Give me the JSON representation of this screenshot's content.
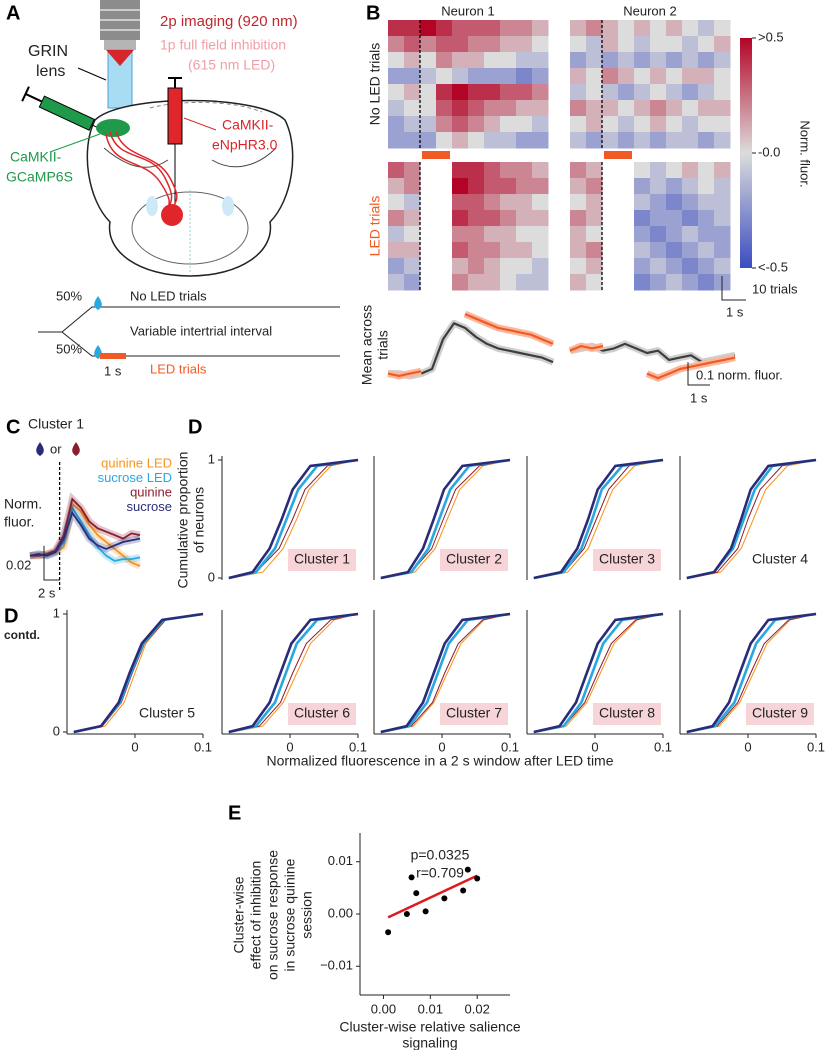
{
  "panel_a": {
    "label": "A",
    "texts": {
      "imaging": "2p imaging (920 nm)",
      "inhibition_1": "1p full field inhibition",
      "inhibition_2": "(615 nm LED)",
      "grin_1": "GRIN",
      "grin_2": "lens",
      "opsin_1": "CaMKII-",
      "opsin_2": "eNpHR3.0",
      "indicator_1": "CaMKII-",
      "indicator_2": "GCaMP6S"
    },
    "protocol": {
      "no_led_percent": "50%",
      "no_led_label": "No LED trials",
      "iti": "Variable intertrial interval",
      "led_percent": "50%",
      "duration": "1 s",
      "led_label": "LED trials"
    }
  },
  "panel_b": {
    "label": "B",
    "type": "heatmap",
    "row_labels": [
      "No LED trials",
      "LED trials"
    ],
    "led_color": "#f15a24",
    "colorscale": {
      "label": "Norm. fluor.",
      "colors": [
        "#3a4cc0",
        "#dcdcdc",
        "#b40426"
      ],
      "ticks": [
        {
          "value": 0.5,
          "label": ">0.5"
        },
        {
          "value": 0,
          "label": "-0.0"
        },
        {
          "value": -0.5,
          "label": "<-0.5"
        }
      ]
    },
    "scalebar": {
      "trials": "10 trials",
      "time": "1 s"
    },
    "trace_label": [
      "Mean across",
      "trials"
    ],
    "trace_colors": [
      "#3d3d3d",
      "#f15a24"
    ],
    "trace_ylim": [
      -0.05,
      0.3
    ],
    "trace_scalebar": {
      "value": 0.1,
      "label": "0.1 norm. fluor."
    },
    "trace_time": "1 s",
    "neurons": [
      {
        "title": "Neuron 1",
        "no_led": [
          [
            0.4,
            0.4,
            0.5,
            0.4,
            0.3,
            0.3,
            0.3,
            0.2,
            0.2,
            0.1
          ],
          [
            0.2,
            0.3,
            0.2,
            0.3,
            0.3,
            0.2,
            0.2,
            0.1,
            0.1,
            0.0
          ],
          [
            0.0,
            0.1,
            0.0,
            0.2,
            0.1,
            0.1,
            0.0,
            0.0,
            -0.1,
            -0.1
          ],
          [
            -0.2,
            -0.2,
            -0.1,
            0.0,
            -0.1,
            -0.2,
            -0.2,
            -0.2,
            -0.3,
            -0.2
          ],
          [
            0.0,
            0.1,
            0.0,
            0.4,
            0.5,
            0.4,
            0.4,
            0.3,
            0.3,
            0.2
          ],
          [
            -0.1,
            0.0,
            0.0,
            0.3,
            0.4,
            0.3,
            0.2,
            0.2,
            0.1,
            0.1
          ],
          [
            -0.2,
            -0.1,
            -0.1,
            0.2,
            0.3,
            0.2,
            0.1,
            0.0,
            0.0,
            -0.1
          ],
          [
            -0.2,
            -0.2,
            -0.2,
            0.0,
            0.1,
            0.0,
            -0.1,
            -0.1,
            -0.2,
            -0.2
          ]
        ],
        "led": [
          [
            0.3,
            0.2,
            null,
            null,
            0.4,
            0.4,
            0.3,
            0.2,
            0.2,
            0.1
          ],
          [
            0.1,
            0.2,
            null,
            null,
            0.5,
            0.4,
            0.3,
            0.3,
            0.2,
            0.2
          ],
          [
            0.0,
            -0.1,
            null,
            null,
            0.3,
            0.3,
            0.2,
            0.1,
            0.1,
            0.0
          ],
          [
            0.2,
            0.1,
            null,
            null,
            0.4,
            0.3,
            0.3,
            0.2,
            0.1,
            0.1
          ],
          [
            -0.1,
            0.0,
            null,
            null,
            0.2,
            0.2,
            0.1,
            0.1,
            0.0,
            0.0
          ],
          [
            0.1,
            0.1,
            null,
            null,
            0.3,
            0.2,
            0.2,
            0.1,
            0.1,
            0.0
          ],
          [
            -0.2,
            -0.1,
            null,
            null,
            0.1,
            0.2,
            0.1,
            0.0,
            0.0,
            -0.1
          ],
          [
            -0.1,
            -0.2,
            null,
            null,
            0.2,
            0.1,
            0.1,
            0.0,
            -0.1,
            -0.1
          ]
        ],
        "trace_no_led": [
          0,
          0,
          -0.01,
          0,
          0.02,
          0.15,
          0.22,
          0.2,
          0.16,
          0.13,
          0.11,
          0.1,
          0.09,
          0.08,
          0.07,
          0.05
        ],
        "trace_led": [
          0.0,
          -0.01,
          0,
          0.01,
          null,
          null,
          null,
          0.26,
          0.24,
          0.22,
          0.2,
          0.19,
          0.18,
          0.17,
          0.15,
          0.13
        ]
      },
      {
        "title": "Neuron 2",
        "no_led": [
          [
            0.1,
            0.2,
            0.1,
            0.0,
            0.1,
            0.0,
            0.1,
            0.0,
            -0.1,
            0.0
          ],
          [
            0.0,
            -0.1,
            0.1,
            0.0,
            -0.1,
            0.0,
            0.0,
            -0.1,
            0.0,
            0.1
          ],
          [
            -0.2,
            -0.1,
            -0.2,
            -0.1,
            -0.2,
            -0.1,
            -0.2,
            -0.1,
            -0.2,
            -0.1
          ],
          [
            0.1,
            0.0,
            0.2,
            0.1,
            0.0,
            0.1,
            0.0,
            0.1,
            0.1,
            0.0
          ],
          [
            -0.1,
            0.0,
            -0.1,
            -0.2,
            -0.1,
            0.0,
            -0.1,
            -0.2,
            -0.1,
            0.0
          ],
          [
            0.2,
            0.1,
            0.1,
            0.0,
            0.1,
            0.2,
            0.1,
            0.0,
            0.1,
            0.1
          ],
          [
            0.0,
            0.1,
            0.0,
            -0.1,
            0.0,
            0.1,
            0.0,
            -0.1,
            0.0,
            0.0
          ],
          [
            -0.1,
            -0.2,
            -0.1,
            -0.2,
            -0.1,
            -0.2,
            -0.1,
            -0.1,
            -0.2,
            -0.1
          ]
        ],
        "led": [
          [
            0.2,
            0.1,
            null,
            null,
            0.0,
            -0.1,
            0.0,
            0.1,
            0.0,
            0.1
          ],
          [
            0.1,
            0.2,
            null,
            null,
            -0.2,
            -0.1,
            -0.2,
            -0.1,
            0.0,
            -0.1
          ],
          [
            0.0,
            0.1,
            null,
            null,
            -0.1,
            -0.2,
            -0.3,
            -0.2,
            -0.1,
            -0.1
          ],
          [
            0.2,
            0.1,
            null,
            null,
            -0.3,
            -0.2,
            -0.2,
            -0.3,
            -0.2,
            -0.1
          ],
          [
            0.1,
            0.0,
            null,
            null,
            -0.2,
            -0.3,
            -0.2,
            -0.1,
            -0.2,
            -0.2
          ],
          [
            0.1,
            0.2,
            null,
            null,
            -0.1,
            -0.2,
            -0.3,
            -0.2,
            -0.1,
            -0.2
          ],
          [
            0.0,
            0.1,
            null,
            null,
            -0.2,
            -0.1,
            -0.2,
            -0.3,
            -0.2,
            -0.1
          ],
          [
            0.1,
            0.0,
            null,
            null,
            -0.3,
            -0.2,
            -0.1,
            -0.2,
            -0.3,
            -0.2
          ]
        ],
        "trace_no_led": [
          0.1,
          0.11,
          0.12,
          0.1,
          0.11,
          0.13,
          0.11,
          0.09,
          0.1,
          0.06,
          0.07,
          0.08,
          0.05,
          0.06,
          0.07,
          0.08
        ],
        "trace_led": [
          0.1,
          0.12,
          0.11,
          0.12,
          null,
          null,
          null,
          0.0,
          -0.02,
          0.0,
          0.02,
          0.03,
          0.04,
          0.05,
          0.06,
          0.07
        ]
      }
    ]
  },
  "panel_c": {
    "label": "C",
    "type": "line",
    "title": "Cluster 1",
    "or": "or",
    "ylabel": [
      "Norm.",
      "fluor."
    ],
    "ylim": [
      -0.02,
      0.05
    ],
    "scalebar_y": 0.02,
    "scalebar_x": "2 s",
    "series": [
      {
        "name": "quinine LED",
        "color": "#f7941d",
        "values": [
          0,
          0,
          0.001,
          0.002,
          0.005,
          0.03,
          0.026,
          0.018,
          0.012,
          0.008,
          0.004,
          0.0,
          -0.004,
          -0.006
        ]
      },
      {
        "name": "sucrose LED",
        "color": "#29a8e0",
        "values": [
          0,
          0.001,
          0,
          0.002,
          0.008,
          0.028,
          0.02,
          0.012,
          0.005,
          0.0,
          -0.003,
          -0.002,
          -0.002,
          -0.001
        ]
      },
      {
        "name": "quinine",
        "color": "#8c1d2e",
        "values": [
          0,
          0,
          0.001,
          0.003,
          0.012,
          0.033,
          0.028,
          0.02,
          0.016,
          0.014,
          0.012,
          0.01,
          0.013,
          0.012
        ]
      },
      {
        "name": "sucrose",
        "color": "#2a2c7a",
        "values": [
          0,
          0.001,
          0,
          0.002,
          0.01,
          0.025,
          0.018,
          0.01,
          0.006,
          0.004,
          0.006,
          0.008,
          0.009,
          0.01
        ]
      }
    ]
  },
  "panel_d": {
    "label": "D",
    "label_contd": [
      "D",
      "contd."
    ],
    "type": "line",
    "ylabel": [
      "Cumulative proportion",
      "of neurons"
    ],
    "xlabel": "Normalized fluorescence in a 2 s window after LED time",
    "xlim": [
      -0.1,
      0.1
    ],
    "xticks": [
      0,
      0.1
    ],
    "ylim": [
      0,
      1
    ],
    "yticks": [
      0,
      1
    ],
    "colors": [
      "#2a2c7a",
      "#29a8e0",
      "#8c1d2e",
      "#f7941d"
    ],
    "y": [
      0,
      0.05,
      0.25,
      0.5,
      0.75,
      0.95,
      1
    ],
    "charts": [
      {
        "title": "Cluster 1",
        "highlight": true,
        "series": [
          [
            -0.09,
            -0.055,
            -0.03,
            -0.012,
            0.004,
            0.03,
            0.1
          ],
          [
            -0.09,
            -0.05,
            -0.022,
            -0.005,
            0.012,
            0.04,
            0.1
          ],
          [
            -0.09,
            -0.05,
            -0.016,
            0.004,
            0.022,
            0.055,
            0.1
          ],
          [
            -0.085,
            -0.04,
            -0.01,
            0.01,
            0.028,
            0.06,
            0.1
          ]
        ]
      },
      {
        "title": "Cluster 2",
        "highlight": true,
        "series": [
          [
            -0.09,
            -0.05,
            -0.028,
            -0.012,
            0.003,
            0.03,
            0.1
          ],
          [
            -0.09,
            -0.045,
            -0.02,
            -0.004,
            0.012,
            0.04,
            0.1
          ],
          [
            -0.09,
            -0.045,
            -0.015,
            0.002,
            0.02,
            0.055,
            0.1
          ],
          [
            -0.085,
            -0.04,
            -0.01,
            0.008,
            0.026,
            0.06,
            0.1
          ]
        ]
      },
      {
        "title": "Cluster 3",
        "highlight": true,
        "series": [
          [
            -0.09,
            -0.05,
            -0.026,
            -0.01,
            0.004,
            0.03,
            0.1
          ],
          [
            -0.09,
            -0.046,
            -0.02,
            -0.004,
            0.01,
            0.04,
            0.1
          ],
          [
            -0.09,
            -0.045,
            -0.016,
            0.002,
            0.02,
            0.05,
            0.1
          ],
          [
            -0.085,
            -0.04,
            -0.01,
            0.008,
            0.026,
            0.058,
            0.1
          ]
        ]
      },
      {
        "title": "Cluster 4",
        "highlight": false,
        "series": [
          [
            -0.09,
            -0.05,
            -0.025,
            -0.01,
            0.004,
            0.03,
            0.1
          ],
          [
            -0.09,
            -0.05,
            -0.022,
            -0.006,
            0.01,
            0.036,
            0.1
          ],
          [
            -0.09,
            -0.045,
            -0.015,
            0.0,
            0.018,
            0.05,
            0.1
          ],
          [
            -0.085,
            -0.04,
            -0.01,
            0.008,
            0.026,
            0.058,
            0.1
          ]
        ]
      },
      {
        "title": "Cluster 5",
        "highlight": false,
        "series": [
          [
            -0.09,
            -0.05,
            -0.024,
            -0.008,
            0.01,
            0.04,
            0.1
          ],
          [
            -0.09,
            -0.05,
            -0.022,
            -0.006,
            0.012,
            0.042,
            0.1
          ],
          [
            -0.09,
            -0.048,
            -0.02,
            -0.004,
            0.014,
            0.045,
            0.1
          ],
          [
            -0.085,
            -0.044,
            -0.016,
            0.0,
            0.016,
            0.045,
            0.1
          ]
        ]
      },
      {
        "title": "Cluster 6",
        "highlight": true,
        "series": [
          [
            -0.09,
            -0.055,
            -0.03,
            -0.014,
            0.002,
            0.03,
            0.1
          ],
          [
            -0.09,
            -0.05,
            -0.022,
            -0.006,
            0.01,
            0.04,
            0.1
          ],
          [
            -0.09,
            -0.045,
            -0.014,
            0.004,
            0.024,
            0.06,
            0.1
          ],
          [
            -0.085,
            -0.04,
            -0.01,
            0.01,
            0.03,
            0.065,
            0.1
          ]
        ]
      },
      {
        "title": "Cluster 7",
        "highlight": true,
        "series": [
          [
            -0.09,
            -0.052,
            -0.028,
            -0.012,
            0.004,
            0.03,
            0.1
          ],
          [
            -0.09,
            -0.048,
            -0.022,
            -0.006,
            0.01,
            0.038,
            0.1
          ],
          [
            -0.09,
            -0.045,
            -0.014,
            0.004,
            0.024,
            0.06,
            0.1
          ],
          [
            -0.085,
            -0.042,
            -0.012,
            0.008,
            0.028,
            0.062,
            0.1
          ]
        ]
      },
      {
        "title": "Cluster 8",
        "highlight": true,
        "series": [
          [
            -0.09,
            -0.052,
            -0.028,
            -0.012,
            0.004,
            0.03,
            0.1
          ],
          [
            -0.09,
            -0.046,
            -0.02,
            -0.004,
            0.012,
            0.04,
            0.1
          ],
          [
            -0.09,
            -0.045,
            -0.015,
            0.004,
            0.024,
            0.06,
            0.1
          ],
          [
            -0.085,
            -0.042,
            -0.012,
            0.008,
            0.028,
            0.062,
            0.1
          ]
        ]
      },
      {
        "title": "Cluster 9",
        "highlight": true,
        "series": [
          [
            -0.09,
            -0.052,
            -0.028,
            -0.012,
            0.004,
            0.03,
            0.1
          ],
          [
            -0.09,
            -0.048,
            -0.02,
            -0.004,
            0.012,
            0.04,
            0.1
          ],
          [
            -0.09,
            -0.045,
            -0.015,
            0.004,
            0.024,
            0.06,
            0.1
          ],
          [
            -0.085,
            -0.042,
            -0.012,
            0.008,
            0.028,
            0.062,
            0.1
          ]
        ]
      }
    ]
  },
  "panel_e": {
    "label": "E",
    "type": "scatter",
    "x": [
      0.001,
      0.005,
      0.006,
      0.007,
      0.009,
      0.013,
      0.017,
      0.018,
      0.02
    ],
    "y": [
      -0.0035,
      0.0,
      0.007,
      0.004,
      0.0005,
      0.003,
      0.0045,
      0.0085,
      0.0068
    ],
    "xlim": [
      -0.005,
      0.027
    ],
    "ylim": [
      -0.0155,
      0.0155
    ],
    "xticks": [
      {
        "value": 0,
        "label": "0.00"
      },
      {
        "value": 0.01,
        "label": "0.01"
      },
      {
        "value": 0.02,
        "label": "0.02"
      }
    ],
    "yticks": [
      {
        "value": -0.01,
        "label": "−0.01"
      },
      {
        "value": 0,
        "label": "0.00"
      },
      {
        "value": 0.01,
        "label": "0.01"
      }
    ],
    "ylabel": [
      "Cluster-wise",
      "effect of inhibition",
      "on sucrose response",
      "in sucrose quinine",
      "session"
    ],
    "xlabel": [
      "Cluster-wise relative salience",
      "signaling"
    ],
    "stats": [
      "p=0.0325",
      "r=0.709"
    ],
    "point_color": "#000000",
    "fit_color": "#e0191f"
  }
}
